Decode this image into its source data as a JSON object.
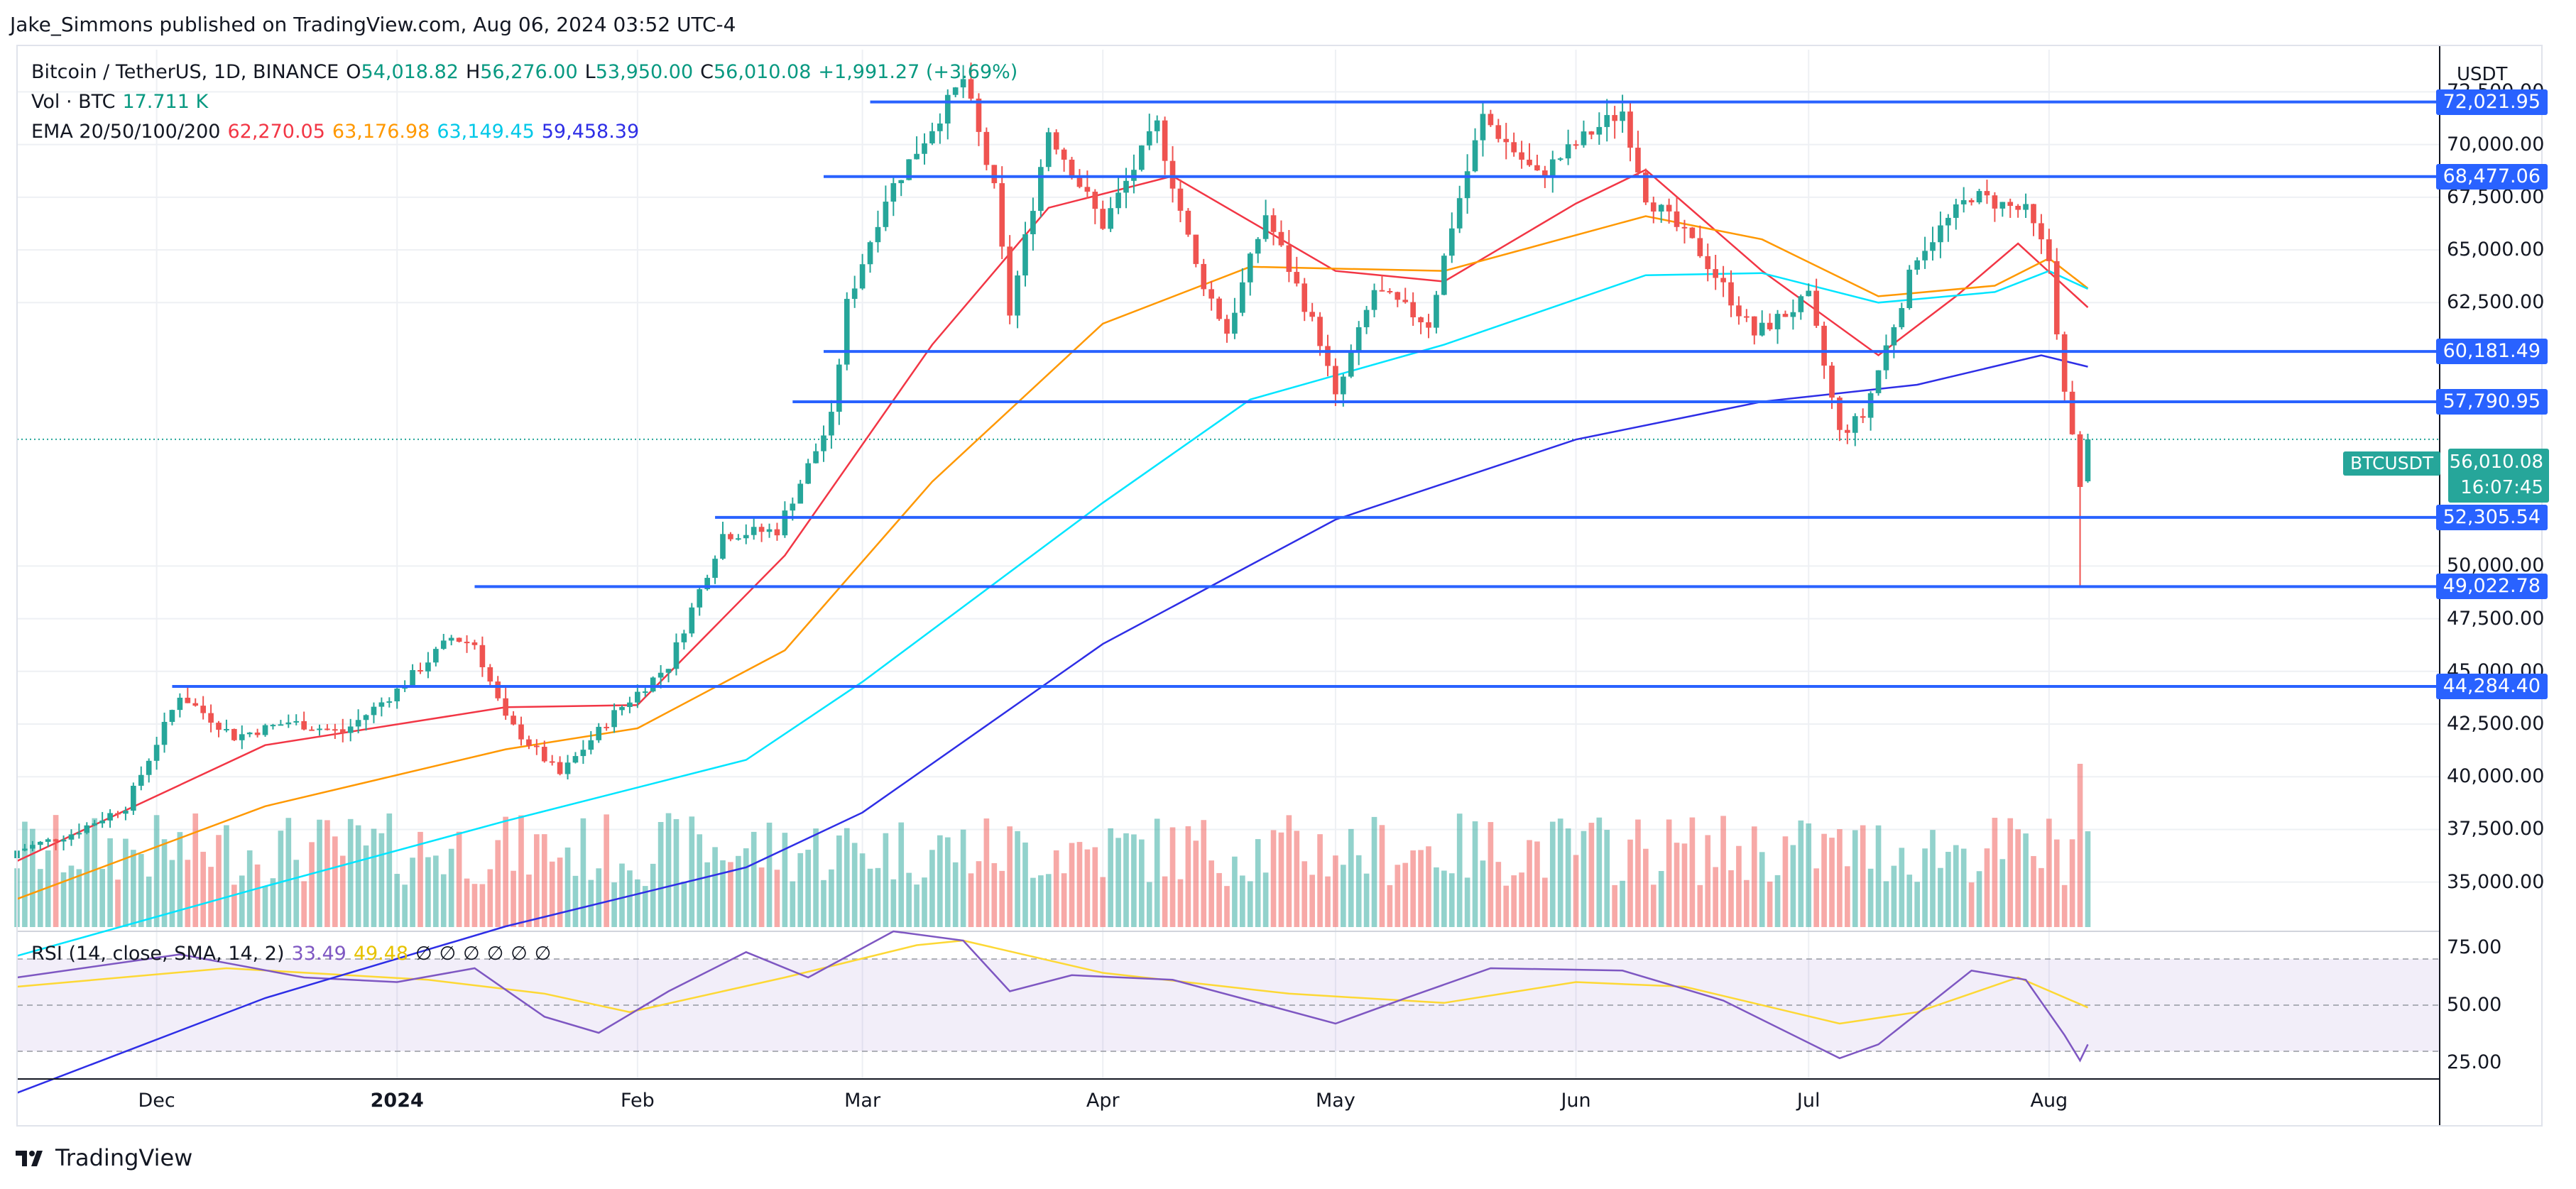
{
  "publisher_line": "Jake_Simmons published on TradingView.com, Aug 06, 2024 03:52 UTC-4",
  "legend": {
    "symbol": "Bitcoin / TetherUS, 1D, BINANCE",
    "open_label": "O",
    "open": "54,018.82",
    "high_label": "H",
    "high": "56,276.00",
    "low_label": "L",
    "low": "53,950.00",
    "close_label": "C",
    "close": "56,010.08",
    "change": "+1,991.27 (+3.69%)",
    "vol_label": "Vol · BTC",
    "vol": "17.711 K",
    "ema_label": "EMA 20/50/100/200",
    "ema20": "62,270.05",
    "ema50": "63,176.98",
    "ema100": "63,149.45",
    "ema200": "59,458.39",
    "rsi_label": "RSI (14, close, SMA, 14, 2)",
    "rsi": "33.49",
    "rsi_sma": "49.48",
    "rsi_na": [
      "∅",
      "∅",
      "∅",
      "∅",
      "∅",
      "∅"
    ]
  },
  "currency": "USDT",
  "price_tag": {
    "name": "BTCUSDT",
    "price": "56,010.08",
    "countdown": "16:07:45"
  },
  "footer_brand": "TradingView",
  "colors": {
    "up": "#26a69a",
    "down": "#ef5350",
    "hline": "#2962ff",
    "ema20": "#f23645",
    "ema50": "#ff9800",
    "ema100": "#00e5ff",
    "ema200": "#2e2ee6",
    "rsi": "#7e57c2",
    "rsi_sma": "#fdd835"
  },
  "chart_data": {
    "type": "candlestick",
    "x_range": [
      "2023-11-13",
      "2024-09-20"
    ],
    "ylim": [
      32800,
      74500
    ],
    "y_ticks": [
      "35,000.00",
      "37,500.00",
      "40,000.00",
      "42,500.00",
      "45,000.00",
      "47,500.00",
      "50,000.00",
      "62,500.00",
      "65,000.00",
      "67,500.00",
      "70,000.00",
      "72,500.00"
    ],
    "x_ticks": [
      {
        "label": "Dec",
        "date": "2023-12-01",
        "bold": false
      },
      {
        "label": "2024",
        "date": "2024-01-01",
        "bold": true
      },
      {
        "label": "Feb",
        "date": "2024-02-01",
        "bold": false
      },
      {
        "label": "Mar",
        "date": "2024-03-01",
        "bold": false
      },
      {
        "label": "Apr",
        "date": "2024-04-01",
        "bold": false
      },
      {
        "label": "May",
        "date": "2024-05-01",
        "bold": false
      },
      {
        "label": "Jun",
        "date": "2024-06-01",
        "bold": false
      },
      {
        "label": "Jul",
        "date": "2024-07-01",
        "bold": false
      },
      {
        "label": "Aug",
        "date": "2024-08-01",
        "bold": false
      }
    ],
    "horizontal_levels": [
      {
        "value": 72021.95,
        "label": "72,021.95",
        "start": "2024-03-02"
      },
      {
        "value": 68477.06,
        "label": "68,477.06",
        "start": "2024-02-25"
      },
      {
        "value": 60181.49,
        "label": "60,181.49",
        "start": "2024-02-25"
      },
      {
        "value": 57790.95,
        "label": "57,790.95",
        "start": "2024-02-21"
      },
      {
        "value": 52305.54,
        "label": "52,305.54",
        "start": "2024-02-11"
      },
      {
        "value": 49022.78,
        "label": "49,022.78",
        "start": "2024-01-11"
      },
      {
        "value": 44284.4,
        "label": "44,284.40",
        "start": "2023-12-03"
      }
    ],
    "close_series": [
      [
        "2023-11-13",
        36500
      ],
      [
        "2023-11-20",
        37300
      ],
      [
        "2023-11-27",
        38600
      ],
      [
        "2023-12-04",
        43900
      ],
      [
        "2023-12-11",
        41900
      ],
      [
        "2023-12-18",
        42600
      ],
      [
        "2023-12-25",
        42100
      ],
      [
        "2024-01-01",
        44100
      ],
      [
        "2024-01-08",
        46600
      ],
      [
        "2024-01-11",
        46300
      ],
      [
        "2024-01-15",
        42700
      ],
      [
        "2024-01-22",
        40100
      ],
      [
        "2024-01-29",
        43000
      ],
      [
        "2024-02-05",
        45300
      ],
      [
        "2024-02-12",
        51500
      ],
      [
        "2024-02-19",
        51700
      ],
      [
        "2024-02-26",
        57000
      ],
      [
        "2024-02-28",
        62400
      ],
      [
        "2024-03-04",
        67500
      ],
      [
        "2024-03-11",
        71400
      ],
      [
        "2024-03-14",
        73100
      ],
      [
        "2024-03-18",
        67800
      ],
      [
        "2024-03-20",
        62000
      ],
      [
        "2024-03-25",
        70700
      ],
      [
        "2024-04-01",
        66200
      ],
      [
        "2024-04-08",
        70900
      ],
      [
        "2024-04-13",
        64200
      ],
      [
        "2024-04-17",
        61100
      ],
      [
        "2024-04-22",
        66700
      ],
      [
        "2024-04-29",
        60700
      ],
      [
        "2024-05-01",
        57900
      ],
      [
        "2024-05-06",
        63100
      ],
      [
        "2024-05-13",
        61500
      ],
      [
        "2024-05-16",
        66200
      ],
      [
        "2024-05-20",
        71300
      ],
      [
        "2024-05-27",
        68500
      ],
      [
        "2024-06-03",
        70600
      ],
      [
        "2024-06-07",
        71600
      ],
      [
        "2024-06-10",
        67600
      ],
      [
        "2024-06-17",
        64900
      ],
      [
        "2024-06-24",
        61000
      ],
      [
        "2024-07-01",
        62700
      ],
      [
        "2024-07-05",
        56300
      ],
      [
        "2024-07-08",
        57100
      ],
      [
        "2024-07-15",
        64800
      ],
      [
        "2024-07-22",
        67600
      ],
      [
        "2024-07-29",
        66800
      ],
      [
        "2024-08-01",
        64500
      ],
      [
        "2024-08-03",
        58100
      ],
      [
        "2024-08-05",
        54000
      ],
      [
        "2024-08-06",
        56010
      ]
    ],
    "ema_series": [
      {
        "name": "EMA 20",
        "current": 62270.05,
        "values": [
          [
            "2023-11-13",
            36000
          ],
          [
            "2023-12-15",
            41500
          ],
          [
            "2024-01-15",
            43300
          ],
          [
            "2024-02-01",
            43400
          ],
          [
            "2024-02-20",
            50500
          ],
          [
            "2024-03-10",
            60500
          ],
          [
            "2024-03-25",
            67000
          ],
          [
            "2024-04-10",
            68500
          ],
          [
            "2024-05-01",
            64000
          ],
          [
            "2024-05-15",
            63500
          ],
          [
            "2024-06-01",
            67200
          ],
          [
            "2024-06-10",
            68800
          ],
          [
            "2024-06-25",
            64000
          ],
          [
            "2024-07-10",
            60000
          ],
          [
            "2024-07-20",
            62800
          ],
          [
            "2024-07-28",
            65300
          ],
          [
            "2024-08-06",
            62270
          ]
        ]
      },
      {
        "name": "EMA 50",
        "current": 63176.98,
        "values": [
          [
            "2023-11-13",
            34200
          ],
          [
            "2023-12-15",
            38600
          ],
          [
            "2024-01-15",
            41300
          ],
          [
            "2024-02-01",
            42300
          ],
          [
            "2024-02-20",
            46000
          ],
          [
            "2024-03-10",
            54000
          ],
          [
            "2024-04-01",
            61500
          ],
          [
            "2024-04-20",
            64200
          ],
          [
            "2024-05-15",
            64000
          ],
          [
            "2024-06-10",
            66600
          ],
          [
            "2024-06-25",
            65500
          ],
          [
            "2024-07-10",
            62800
          ],
          [
            "2024-07-25",
            63300
          ],
          [
            "2024-08-01",
            64600
          ],
          [
            "2024-08-06",
            63177
          ]
        ]
      },
      {
        "name": "EMA 100",
        "current": 63149.45,
        "values": [
          [
            "2023-11-13",
            31500
          ],
          [
            "2023-12-15",
            34800
          ],
          [
            "2024-01-15",
            37900
          ],
          [
            "2024-02-15",
            40800
          ],
          [
            "2024-03-01",
            44500
          ],
          [
            "2024-04-01",
            53000
          ],
          [
            "2024-04-20",
            57900
          ],
          [
            "2024-05-15",
            60500
          ],
          [
            "2024-06-10",
            63800
          ],
          [
            "2024-06-25",
            63900
          ],
          [
            "2024-07-10",
            62500
          ],
          [
            "2024-07-25",
            63000
          ],
          [
            "2024-08-01",
            64000
          ],
          [
            "2024-08-06",
            63149
          ]
        ]
      },
      {
        "name": "EMA 200",
        "current": 59458.39,
        "values": [
          [
            "2023-11-13",
            25000
          ],
          [
            "2023-12-15",
            29500
          ],
          [
            "2024-01-15",
            32900
          ],
          [
            "2024-02-15",
            35700
          ],
          [
            "2024-03-01",
            38300
          ],
          [
            "2024-04-01",
            46300
          ],
          [
            "2024-05-01",
            52200
          ],
          [
            "2024-06-01",
            56000
          ],
          [
            "2024-06-25",
            57800
          ],
          [
            "2024-07-15",
            58600
          ],
          [
            "2024-07-31",
            60000
          ],
          [
            "2024-08-06",
            59458
          ]
        ]
      }
    ],
    "rsi": {
      "ylim": [
        18,
        82
      ],
      "ticks": [
        "75.00",
        "50.00",
        "25.00"
      ],
      "band": [
        30,
        70
      ],
      "current": 33.49,
      "sma_current": 49.48,
      "values": [
        [
          "2023-11-13",
          62
        ],
        [
          "2023-12-04",
          72
        ],
        [
          "2023-12-20",
          62
        ],
        [
          "2024-01-01",
          60
        ],
        [
          "2024-01-11",
          66
        ],
        [
          "2024-01-20",
          45
        ],
        [
          "2024-01-27",
          38
        ],
        [
          "2024-02-05",
          56
        ],
        [
          "2024-02-15",
          73
        ],
        [
          "2024-02-23",
          62
        ],
        [
          "2024-03-05",
          82
        ],
        [
          "2024-03-14",
          78
        ],
        [
          "2024-03-20",
          56
        ],
        [
          "2024-03-28",
          63
        ],
        [
          "2024-04-10",
          61
        ],
        [
          "2024-04-20",
          52
        ],
        [
          "2024-05-01",
          42
        ],
        [
          "2024-05-10",
          53
        ],
        [
          "2024-05-21",
          66
        ],
        [
          "2024-06-07",
          65
        ],
        [
          "2024-06-20",
          52
        ],
        [
          "2024-07-05",
          27
        ],
        [
          "2024-07-10",
          33
        ],
        [
          "2024-07-22",
          65
        ],
        [
          "2024-07-29",
          61
        ],
        [
          "2024-08-03",
          37
        ],
        [
          "2024-08-05",
          26
        ],
        [
          "2024-08-06",
          33
        ]
      ],
      "sma_values": [
        [
          "2023-11-13",
          58
        ],
        [
          "2023-12-10",
          66
        ],
        [
          "2024-01-05",
          61
        ],
        [
          "2024-01-20",
          55
        ],
        [
          "2024-01-31",
          47
        ],
        [
          "2024-02-20",
          62
        ],
        [
          "2024-03-08",
          76
        ],
        [
          "2024-03-14",
          78
        ],
        [
          "2024-04-01",
          64
        ],
        [
          "2024-04-25",
          55
        ],
        [
          "2024-05-15",
          51
        ],
        [
          "2024-06-01",
          60
        ],
        [
          "2024-06-15",
          58
        ],
        [
          "2024-07-05",
          42
        ],
        [
          "2024-07-15",
          47
        ],
        [
          "2024-07-28",
          62
        ],
        [
          "2024-08-06",
          49
        ]
      ]
    }
  }
}
